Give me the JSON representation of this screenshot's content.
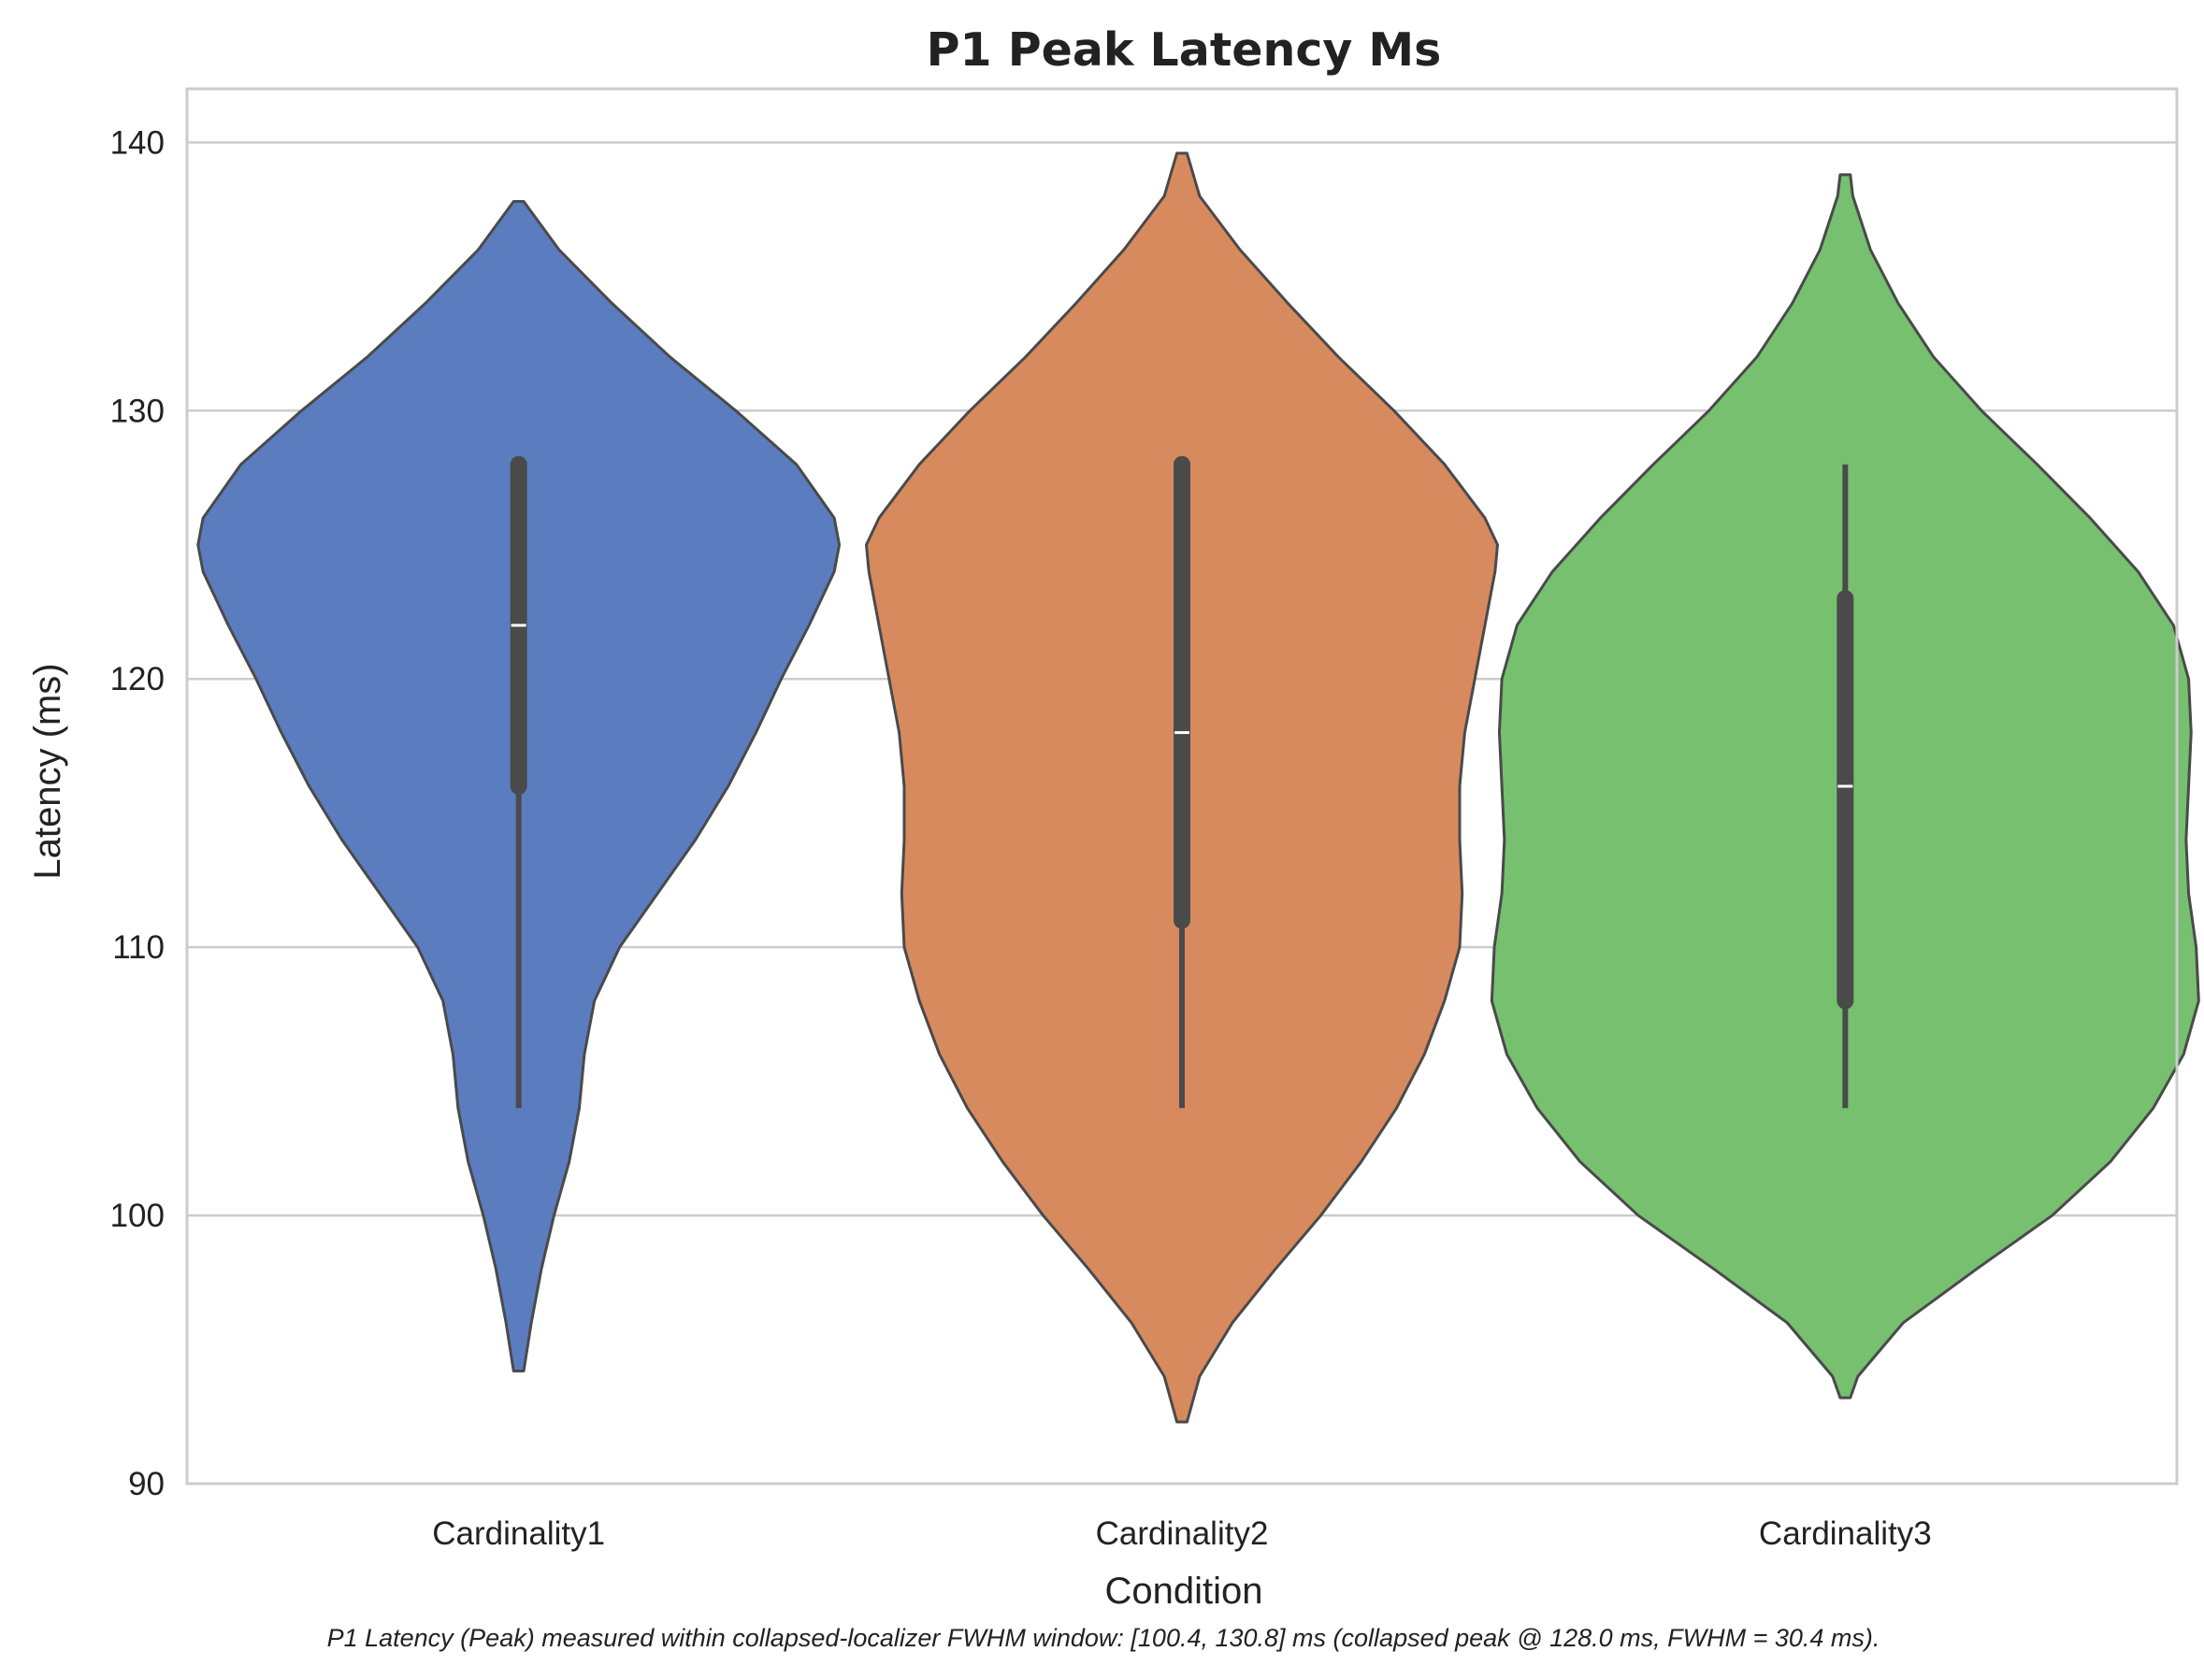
{
  "chart_data": {
    "type": "violin",
    "title": "P1 Peak Latency Ms",
    "xlabel": "Condition",
    "ylabel": "Latency (ms)",
    "ylim": [
      90,
      142
    ],
    "yticks": [
      90,
      100,
      110,
      120,
      130,
      140
    ],
    "grid": "horizontal",
    "legend": "none",
    "caption": "P1 Latency (Peak) measured within collapsed-localizer FWHM window: [100.4, 130.8] ms (collapsed peak @ 128.0 ms, FWHM = 30.4 ms).",
    "categories": [
      "Cardinality1",
      "Cardinality2",
      "Cardinality3"
    ],
    "series": [
      {
        "category": "Cardinality1",
        "color": "#5b7dc0",
        "kde_min": 94.2,
        "kde_max": 137.8,
        "whisker_low": 104,
        "q1": 116,
        "median": 122,
        "q3": 128,
        "whisker_high": 128,
        "density": [
          [
            94.2,
            0.02
          ],
          [
            96,
            0.05
          ],
          [
            98,
            0.09
          ],
          [
            100,
            0.14
          ],
          [
            102,
            0.2
          ],
          [
            104,
            0.24
          ],
          [
            106,
            0.26
          ],
          [
            108,
            0.3
          ],
          [
            110,
            0.4
          ],
          [
            112,
            0.55
          ],
          [
            114,
            0.7
          ],
          [
            116,
            0.83
          ],
          [
            118,
            0.94
          ],
          [
            120,
            1.04
          ],
          [
            122,
            1.15
          ],
          [
            124,
            1.25
          ],
          [
            125,
            1.27
          ],
          [
            126,
            1.25
          ],
          [
            128,
            1.1
          ],
          [
            130,
            0.86
          ],
          [
            132,
            0.6
          ],
          [
            134,
            0.37
          ],
          [
            136,
            0.16
          ],
          [
            137.8,
            0.02
          ]
        ]
      },
      {
        "category": "Cardinality2",
        "color": "#d88a5f",
        "kde_min": 92.3,
        "kde_max": 139.6,
        "whisker_low": 104,
        "q1": 111,
        "median": 118,
        "q3": 128,
        "whisker_high": 128,
        "density": [
          [
            92.3,
            0.02
          ],
          [
            94,
            0.07
          ],
          [
            96,
            0.2
          ],
          [
            98,
            0.37
          ],
          [
            100,
            0.55
          ],
          [
            102,
            0.71
          ],
          [
            104,
            0.85
          ],
          [
            106,
            0.96
          ],
          [
            108,
            1.04
          ],
          [
            110,
            1.1
          ],
          [
            112,
            1.11
          ],
          [
            114,
            1.1
          ],
          [
            116,
            1.1
          ],
          [
            118,
            1.12
          ],
          [
            120,
            1.16
          ],
          [
            122,
            1.2
          ],
          [
            124,
            1.24
          ],
          [
            125,
            1.25
          ],
          [
            126,
            1.2
          ],
          [
            128,
            1.04
          ],
          [
            130,
            0.84
          ],
          [
            132,
            0.62
          ],
          [
            134,
            0.42
          ],
          [
            136,
            0.23
          ],
          [
            138,
            0.07
          ],
          [
            139.6,
            0.02
          ]
        ]
      },
      {
        "category": "Cardinality3",
        "color": "#76c070",
        "kde_min": 93.2,
        "kde_max": 138.8,
        "whisker_low": 104,
        "q1": 108,
        "median": 116,
        "q3": 123,
        "whisker_high": 128,
        "density": [
          [
            93.2,
            0.02
          ],
          [
            94,
            0.05
          ],
          [
            96,
            0.23
          ],
          [
            98,
            0.52
          ],
          [
            100,
            0.82
          ],
          [
            102,
            1.05
          ],
          [
            104,
            1.22
          ],
          [
            106,
            1.34
          ],
          [
            108,
            1.4
          ],
          [
            110,
            1.39
          ],
          [
            112,
            1.36
          ],
          [
            114,
            1.35
          ],
          [
            116,
            1.36
          ],
          [
            118,
            1.37
          ],
          [
            120,
            1.36
          ],
          [
            122,
            1.3
          ],
          [
            124,
            1.16
          ],
          [
            126,
            0.97
          ],
          [
            128,
            0.76
          ],
          [
            130,
            0.54
          ],
          [
            132,
            0.35
          ],
          [
            134,
            0.21
          ],
          [
            136,
            0.1
          ],
          [
            138,
            0.03
          ],
          [
            138.8,
            0.02
          ]
        ]
      }
    ]
  }
}
